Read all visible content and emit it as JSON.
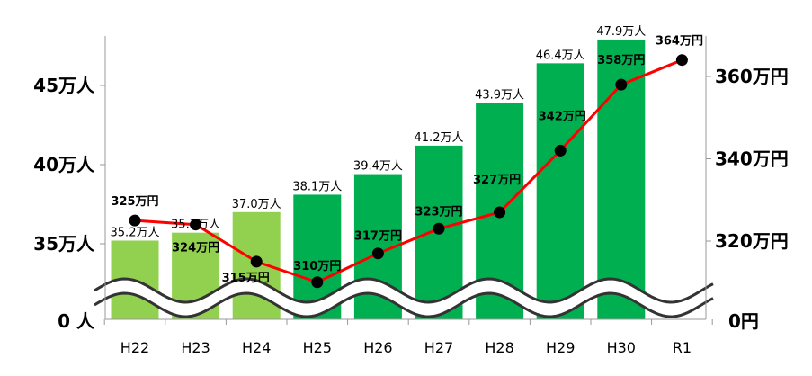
{
  "chart_data": {
    "type": "bar",
    "categories": [
      "H22",
      "H23",
      "H24",
      "H25",
      "H26",
      "H27",
      "H28",
      "H29",
      "H30",
      "R1"
    ],
    "series": [
      {
        "kind": "bar",
        "axis": "left",
        "values": [
          35.2,
          35.7,
          37.0,
          38.1,
          39.4,
          41.2,
          43.9,
          46.4,
          47.9,
          null
        ],
        "labels": [
          "35.2万人",
          "35.7万人",
          "37.0万人",
          "38.1万人",
          "39.4万人",
          "41.2万人",
          "43.9万人",
          "46.4万人",
          "47.9万人",
          ""
        ],
        "colors": [
          "#92d050",
          "#92d050",
          "#92d050",
          "#00b050",
          "#00b050",
          "#00b050",
          "#00b050",
          "#00b050",
          "#00b050",
          "#00b050"
        ]
      },
      {
        "kind": "line",
        "axis": "right",
        "values": [
          325,
          324,
          315,
          310,
          317,
          323,
          327,
          342,
          358,
          364
        ],
        "labels": [
          "325万円",
          "324万円",
          "315万円",
          "310万円",
          "317万円",
          "323万円",
          "327万円",
          "342万円",
          "358万円",
          "364万円"
        ],
        "color": "#ff0000",
        "marker_color": "#000000"
      }
    ],
    "left_axis": {
      "ticks": [
        {
          "value": 35,
          "label": "35万人"
        },
        {
          "value": 40,
          "label": "40万人"
        },
        {
          "value": 45,
          "label": "45万人"
        }
      ],
      "zero_label": "0 人",
      "range": [
        31.5,
        48.5
      ],
      "broken": true
    },
    "right_axis": {
      "ticks": [
        {
          "value": 320,
          "label": "320万円"
        },
        {
          "value": 340,
          "label": "340万円"
        },
        {
          "value": 360,
          "label": "360万円"
        }
      ],
      "zero_label": "0円",
      "range": [
        294,
        372
      ],
      "broken": true
    },
    "grid": false,
    "legend": "none"
  }
}
